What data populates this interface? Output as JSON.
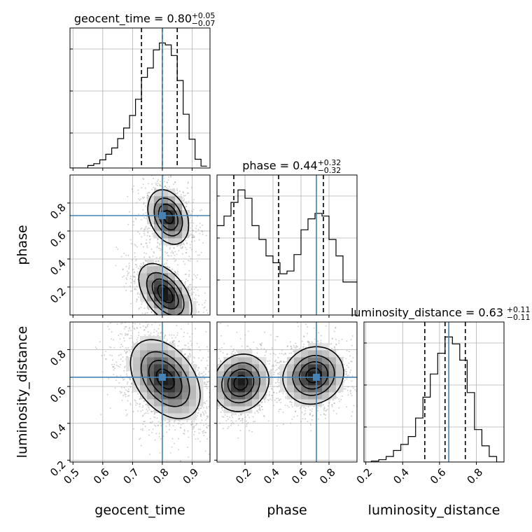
{
  "chart_data": {
    "type": "corner",
    "parameters": [
      "geocent_time",
      "phase",
      "luminosity_distance"
    ],
    "truths": [
      0.8,
      0.71,
      0.65
    ],
    "grid": true,
    "titles": [
      {
        "param": "geocent_time",
        "median": "0.80",
        "plus": "+0.05",
        "minus": "−0.07"
      },
      {
        "param": "phase",
        "median": "0.44",
        "plus": "+0.32",
        "minus": "−0.32"
      },
      {
        "param": "luminosity_distance",
        "median": "0.63",
        "plus": "+0.11",
        "minus": "−0.11"
      }
    ],
    "axis_ranges": {
      "geocent_time": [
        0.49,
        0.96
      ],
      "phase": [
        0.0,
        1.0
      ],
      "luminosity_distance": [
        0.19,
        0.95
      ]
    },
    "x_ticks": {
      "geocent_time": [
        "0.5",
        "0.6",
        "0.7",
        "0.8",
        "0.9"
      ],
      "phase": [
        "0.2",
        "0.4",
        "0.6",
        "0.8"
      ],
      "luminosity_distance": [
        "0.2",
        "0.4",
        "0.6",
        "0.8"
      ]
    },
    "y_ticks": {
      "phase": [
        "0.2",
        "0.4",
        "0.6",
        "0.8"
      ],
      "luminosity_distance": [
        "0.2",
        "0.4",
        "0.6",
        "0.8"
      ]
    },
    "quantile_lines": {
      "geocent_time": [
        0.73,
        0.8,
        0.85
      ],
      "phase": [
        0.12,
        0.44,
        0.76
      ],
      "luminosity_distance": [
        0.52,
        0.63,
        0.74
      ]
    },
    "histograms": {
      "geocent_time": {
        "bin_edges": [
          0.49,
          0.51,
          0.53,
          0.55,
          0.57,
          0.59,
          0.61,
          0.63,
          0.65,
          0.67,
          0.69,
          0.71,
          0.73,
          0.75,
          0.77,
          0.79,
          0.81,
          0.83,
          0.85,
          0.87,
          0.89,
          0.91,
          0.93,
          0.95
        ],
        "counts": [
          0,
          0,
          0,
          0.4,
          0.7,
          1.3,
          2.2,
          3.2,
          4.7,
          6.4,
          8.4,
          11.0,
          14.5,
          16.0,
          18.9,
          20.0,
          19.7,
          18.0,
          14.0,
          8.6,
          4.6,
          1.4,
          0.3
        ]
      },
      "phase": {
        "bin_edges": [
          0.0,
          0.05,
          0.1,
          0.15,
          0.2,
          0.25,
          0.3,
          0.35,
          0.4,
          0.45,
          0.5,
          0.55,
          0.6,
          0.65,
          0.7,
          0.75,
          0.8,
          0.85,
          0.9,
          0.95,
          1.0
        ],
        "counts": [
          0.65,
          0.72,
          0.82,
          0.91,
          0.85,
          0.65,
          0.55,
          0.43,
          0.38,
          0.3,
          0.32,
          0.44,
          0.62,
          0.7,
          0.74,
          0.72,
          0.55,
          0.43,
          0.24,
          0.24
        ]
      },
      "luminosity_distance": {
        "bin_edges": [
          0.19,
          0.23,
          0.27,
          0.31,
          0.35,
          0.39,
          0.43,
          0.47,
          0.51,
          0.55,
          0.59,
          0.63,
          0.67,
          0.71,
          0.75,
          0.79,
          0.83,
          0.87,
          0.91,
          0.95
        ],
        "counts": [
          0,
          0.2,
          0.5,
          1.2,
          2.5,
          3.8,
          5.5,
          9.5,
          14.0,
          19.0,
          23.5,
          27.0,
          25.5,
          22.0,
          15.0,
          7.0,
          3.5,
          1.2,
          0
        ]
      }
    },
    "panels_2d": [
      {
        "x": "geocent_time",
        "y": "phase",
        "modes": [
          {
            "x": 0.82,
            "y": 0.7,
            "sx": 0.035,
            "sy": 0.1,
            "rho": -0.3,
            "weight": 1.0
          },
          {
            "x": 0.81,
            "y": 0.15,
            "sx": 0.045,
            "sy": 0.11,
            "rho": -0.5,
            "weight": 1.05
          }
        ]
      },
      {
        "x": "geocent_time",
        "y": "luminosity_distance",
        "modes": [
          {
            "x": 0.81,
            "y": 0.64,
            "sx": 0.06,
            "sy": 0.11,
            "rho": -0.4,
            "weight": 1.0
          }
        ]
      },
      {
        "x": "phase",
        "y": "luminosity_distance",
        "modes": [
          {
            "x": 0.17,
            "y": 0.62,
            "sx": 0.1,
            "sy": 0.08,
            "rho": 0.1,
            "weight": 1.0
          },
          {
            "x": 0.69,
            "y": 0.66,
            "sx": 0.11,
            "sy": 0.08,
            "rho": 0.1,
            "weight": 1.0
          }
        ]
      }
    ]
  },
  "colors": {
    "truth": "#4682b4",
    "hist": "#000000",
    "grid": "#b0b0b0",
    "scatter": "#9a9a9a"
  }
}
